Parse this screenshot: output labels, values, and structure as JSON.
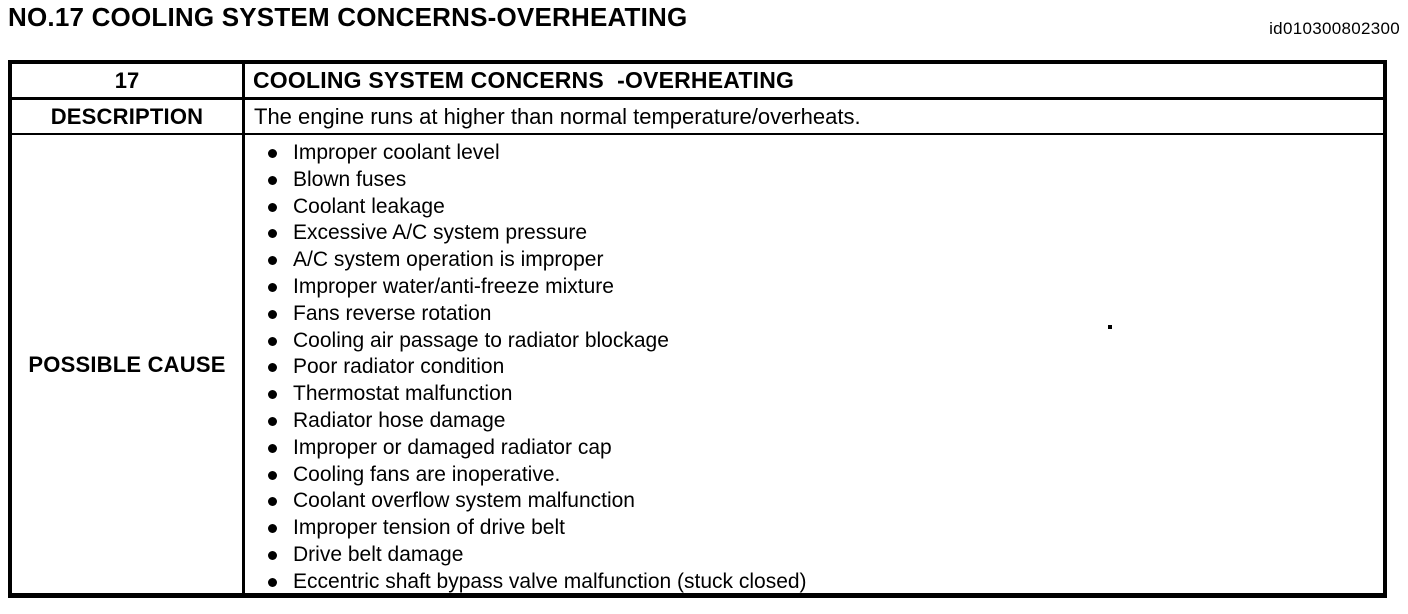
{
  "page": {
    "title": "NO.17 COOLING SYSTEM CONCERNS-OVERHEATING",
    "doc_id": "id010300802300"
  },
  "table": {
    "number": "17",
    "header": "COOLING SYSTEM CONCERNS  -OVERHEATING",
    "description_label": "DESCRIPTION",
    "description": "The engine runs at higher than normal temperature/overheats.",
    "possible_cause_label": "POSSIBLE CAUSE",
    "possible_causes": [
      "Improper coolant level",
      "Blown fuses",
      "Coolant leakage",
      "Excessive A/C system pressure",
      "A/C system operation is improper",
      "Improper water/anti-freeze mixture",
      "Fans reverse rotation",
      "Cooling air passage to radiator blockage",
      "Poor radiator condition",
      "Thermostat malfunction",
      "Radiator hose damage",
      "Improper or damaged radiator cap",
      "Cooling fans are inoperative.",
      "Coolant overflow system malfunction",
      "Improper tension of drive belt",
      "Drive belt damage",
      "Eccentric shaft bypass valve malfunction (stuck closed)"
    ]
  }
}
